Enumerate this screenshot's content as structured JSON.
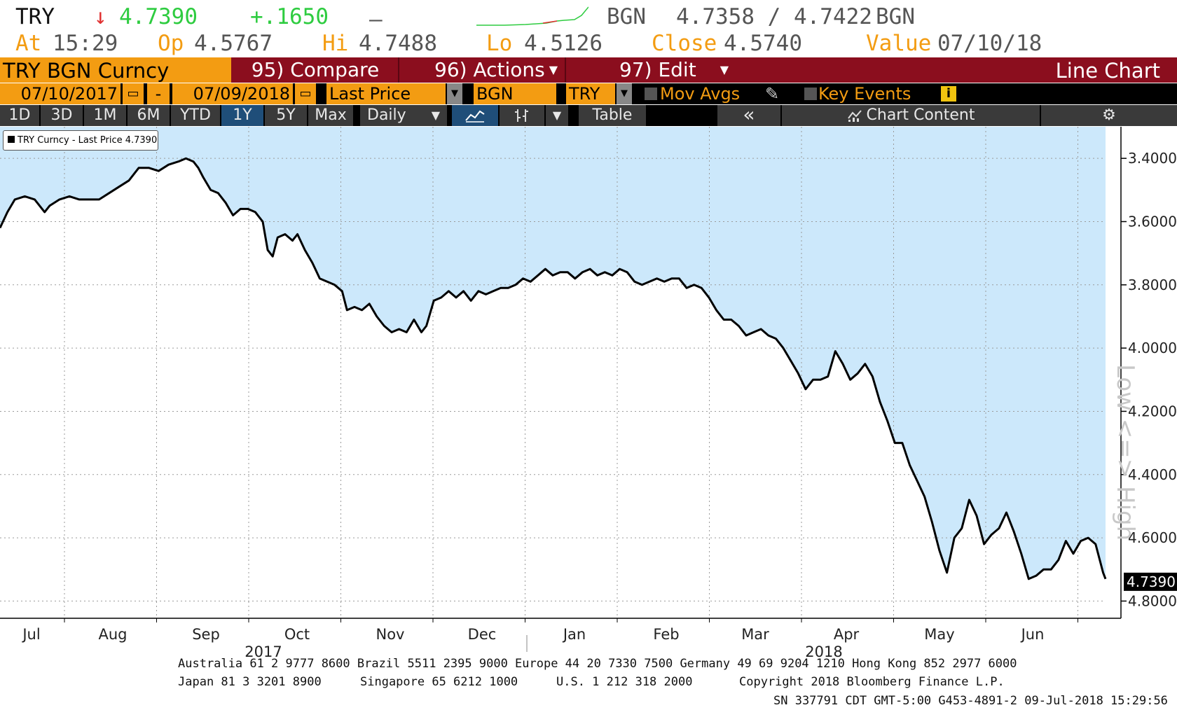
{
  "quote": {
    "ticker": "TRY",
    "arrow": "↓",
    "price": "4.7390",
    "change": "+.1650",
    "dash": "–",
    "source1": "BGN",
    "bid_ask": "4.7358 / 4.7422",
    "source2": "BGN",
    "at_label": "At",
    "at_time": "15:29",
    "op_label": "Op",
    "op": "4.5767",
    "hi_label": "Hi",
    "hi": "4.7488",
    "lo_label": "Lo",
    "lo": "4.5126",
    "close_label": "Close",
    "close": "4.5740",
    "value_label": "Value",
    "value": "07/10/18"
  },
  "menu": {
    "security": "TRY BGN Curncy",
    "compare": "95) Compare",
    "actions": "96) Actions",
    "edit": "97) Edit",
    "chart_type": "Line Chart"
  },
  "params": {
    "start_date": "07/10/2017",
    "sep": "-",
    "end_date": "07/09/2018",
    "field": "Last Price",
    "source": "BGN",
    "currency": "TRY",
    "mov_avgs": "Mov Avgs",
    "key_events": "Key Events"
  },
  "toolbar": {
    "periods": [
      "1D",
      "3D",
      "1M",
      "6M",
      "YTD",
      "1Y",
      "5Y",
      "Max"
    ],
    "active_period": "1Y",
    "frequency": "Daily",
    "table": "Table",
    "chart_content": "Chart Content"
  },
  "legend": {
    "label": "TRY Curncy - Last Price 4.7390"
  },
  "side_label": "Low <=> High",
  "colors": {
    "orange": "#f39c12",
    "maroon": "#8b0e1e",
    "toolbar": "#3a3a3a",
    "active": "#1f4e79",
    "fill": "#cce8fb",
    "price_green": "#2ecc40"
  },
  "chart_data": {
    "type": "area",
    "inverted_y": true,
    "ylim": [
      3.3,
      4.85
    ],
    "y_ticks": [
      "3.4000",
      "3.6000",
      "3.8000",
      "4.0000",
      "4.2000",
      "4.4000",
      "4.6000",
      "4.8000"
    ],
    "last_value_label": "4.7390",
    "months": [
      "Jul",
      "Aug",
      "Sep",
      "Oct",
      "Nov",
      "Dec",
      "Jan",
      "Feb",
      "Mar",
      "Apr",
      "May",
      "Jun"
    ],
    "years": [
      "2017",
      "2018"
    ],
    "series": [
      {
        "name": "TRY Curncy - Last Price",
        "points": [
          [
            0,
            3.62
          ],
          [
            0.15,
            3.57
          ],
          [
            0.3,
            3.53
          ],
          [
            0.5,
            3.52
          ],
          [
            0.7,
            3.53
          ],
          [
            0.9,
            3.57
          ],
          [
            1.0,
            3.55
          ],
          [
            1.2,
            3.53
          ],
          [
            1.4,
            3.52
          ],
          [
            1.6,
            3.53
          ],
          [
            1.8,
            3.53
          ],
          [
            2.0,
            3.53
          ],
          [
            2.2,
            3.51
          ],
          [
            2.4,
            3.49
          ],
          [
            2.6,
            3.47
          ],
          [
            2.8,
            3.43
          ],
          [
            3.0,
            3.43
          ],
          [
            3.2,
            3.44
          ],
          [
            3.4,
            3.42
          ],
          [
            3.6,
            3.41
          ],
          [
            3.75,
            3.4
          ],
          [
            3.9,
            3.41
          ],
          [
            4.0,
            3.43
          ],
          [
            4.1,
            3.46
          ],
          [
            4.25,
            3.5
          ],
          [
            4.4,
            3.51
          ],
          [
            4.55,
            3.54
          ],
          [
            4.7,
            3.58
          ],
          [
            4.85,
            3.56
          ],
          [
            5.0,
            3.56
          ],
          [
            5.15,
            3.57
          ],
          [
            5.3,
            3.6
          ],
          [
            5.4,
            3.69
          ],
          [
            5.5,
            3.71
          ],
          [
            5.6,
            3.65
          ],
          [
            5.75,
            3.64
          ],
          [
            5.9,
            3.66
          ],
          [
            6.0,
            3.64
          ],
          [
            6.15,
            3.69
          ],
          [
            6.3,
            3.73
          ],
          [
            6.45,
            3.78
          ],
          [
            6.6,
            3.79
          ],
          [
            6.75,
            3.8
          ],
          [
            6.9,
            3.82
          ],
          [
            7.0,
            3.88
          ],
          [
            7.15,
            3.87
          ],
          [
            7.3,
            3.88
          ],
          [
            7.45,
            3.86
          ],
          [
            7.6,
            3.9
          ],
          [
            7.75,
            3.93
          ],
          [
            7.9,
            3.95
          ],
          [
            8.05,
            3.94
          ],
          [
            8.2,
            3.95
          ],
          [
            8.35,
            3.91
          ],
          [
            8.5,
            3.95
          ],
          [
            8.6,
            3.93
          ],
          [
            8.75,
            3.85
          ],
          [
            8.9,
            3.84
          ],
          [
            9.05,
            3.82
          ],
          [
            9.2,
            3.84
          ],
          [
            9.35,
            3.82
          ],
          [
            9.5,
            3.85
          ],
          [
            9.65,
            3.82
          ],
          [
            9.8,
            3.83
          ],
          [
            9.95,
            3.82
          ],
          [
            10.1,
            3.81
          ],
          [
            10.25,
            3.81
          ],
          [
            10.4,
            3.8
          ],
          [
            10.55,
            3.78
          ],
          [
            10.7,
            3.79
          ],
          [
            10.85,
            3.77
          ],
          [
            11.0,
            3.75
          ],
          [
            11.15,
            3.77
          ],
          [
            11.3,
            3.76
          ],
          [
            11.45,
            3.76
          ],
          [
            11.6,
            3.78
          ],
          [
            11.75,
            3.76
          ],
          [
            11.9,
            3.75
          ],
          [
            12.05,
            3.77
          ],
          [
            12.2,
            3.76
          ],
          [
            12.35,
            3.77
          ],
          [
            12.5,
            3.75
          ],
          [
            12.65,
            3.76
          ],
          [
            12.8,
            3.79
          ],
          [
            12.95,
            3.8
          ],
          [
            13.1,
            3.79
          ],
          [
            13.25,
            3.78
          ],
          [
            13.4,
            3.79
          ],
          [
            13.55,
            3.78
          ],
          [
            13.7,
            3.78
          ],
          [
            13.85,
            3.81
          ],
          [
            14.0,
            3.8
          ],
          [
            14.15,
            3.81
          ],
          [
            14.3,
            3.84
          ],
          [
            14.45,
            3.88
          ],
          [
            14.6,
            3.91
          ],
          [
            14.75,
            3.91
          ],
          [
            14.9,
            3.93
          ],
          [
            15.05,
            3.96
          ],
          [
            15.2,
            3.95
          ],
          [
            15.35,
            3.94
          ],
          [
            15.5,
            3.96
          ],
          [
            15.65,
            3.97
          ],
          [
            15.8,
            4.0
          ],
          [
            15.95,
            4.04
          ],
          [
            16.1,
            4.08
          ],
          [
            16.25,
            4.13
          ],
          [
            16.4,
            4.1
          ],
          [
            16.55,
            4.1
          ],
          [
            16.7,
            4.09
          ],
          [
            16.85,
            4.01
          ],
          [
            17.0,
            4.05
          ],
          [
            17.15,
            4.1
          ],
          [
            17.3,
            4.08
          ],
          [
            17.45,
            4.05
          ],
          [
            17.6,
            4.09
          ],
          [
            17.75,
            4.17
          ],
          [
            17.9,
            4.23
          ],
          [
            18.05,
            4.3
          ],
          [
            18.2,
            4.3
          ],
          [
            18.35,
            4.37
          ],
          [
            18.5,
            4.42
          ],
          [
            18.65,
            4.47
          ],
          [
            18.8,
            4.55
          ],
          [
            18.95,
            4.64
          ],
          [
            19.1,
            4.71
          ],
          [
            19.25,
            4.6
          ],
          [
            19.4,
            4.57
          ],
          [
            19.55,
            4.48
          ],
          [
            19.7,
            4.53
          ],
          [
            19.85,
            4.62
          ],
          [
            20.0,
            4.59
          ],
          [
            20.15,
            4.57
          ],
          [
            20.3,
            4.52
          ],
          [
            20.45,
            4.58
          ],
          [
            20.6,
            4.65
          ],
          [
            20.75,
            4.73
          ],
          [
            20.9,
            4.72
          ],
          [
            21.05,
            4.7
          ],
          [
            21.2,
            4.7
          ],
          [
            21.35,
            4.67
          ],
          [
            21.5,
            4.61
          ],
          [
            21.65,
            4.65
          ],
          [
            21.8,
            4.61
          ],
          [
            21.95,
            4.6
          ],
          [
            22.1,
            4.62
          ],
          [
            22.25,
            4.71
          ],
          [
            22.3,
            4.73
          ]
        ]
      }
    ]
  },
  "footer": {
    "line1": "Australia 61 2 9777 8600 Brazil 5511 2395 9000 Europe 44 20 7330 7500 Germany 49 69 9204 1210 Hong Kong 852 2977 6000",
    "line2a": "Japan 81 3 3201 8900",
    "line2b": "Singapore 65 6212 1000",
    "line2c": "U.S. 1 212 318 2000",
    "line2d": "Copyright 2018 Bloomberg Finance L.P.",
    "line3": "SN 337791 CDT  GMT-5:00 G453-4891-2 09-Jul-2018 15:29:56"
  }
}
